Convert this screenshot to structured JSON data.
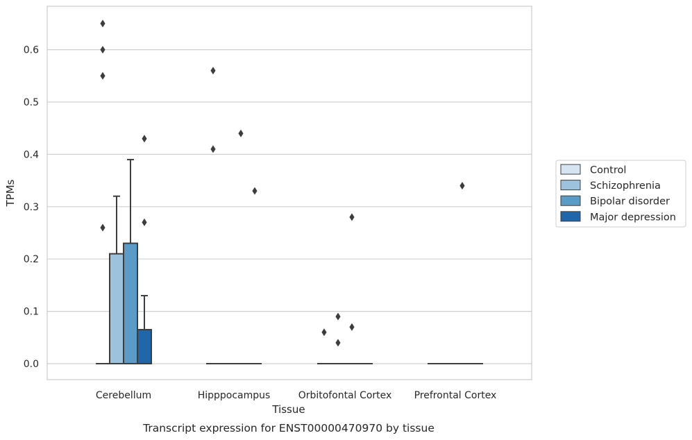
{
  "chart_data": {
    "type": "box",
    "caption": "Transcript expression for ENST00000470970 by tissue",
    "xlabel": "Tissue",
    "ylabel": "TPMs",
    "ylim": [
      -0.032,
      0.685
    ],
    "yticks": [
      0.0,
      0.1,
      0.2,
      0.3,
      0.4,
      0.5,
      0.6
    ],
    "ytick_labels": [
      "0.0",
      "0.1",
      "0.2",
      "0.3",
      "0.4",
      "0.5",
      "0.6"
    ],
    "grid": true,
    "legend_position": "right",
    "categories": [
      "Cerebellum",
      "Hipppocampus",
      "Orbitofontal Cortex",
      "Prefrontal Cortex"
    ],
    "series": [
      {
        "name": "Control",
        "color": "#d6e4f1",
        "boxes": [
          {
            "q1": 0,
            "median": 0,
            "q3": 0,
            "whisker_low": 0,
            "whisker_high": 0,
            "outliers": [
              0.26,
              0.55,
              0.6,
              0.65
            ]
          },
          {
            "q1": 0,
            "median": 0,
            "q3": 0,
            "whisker_low": 0,
            "whisker_high": 0,
            "outliers": [
              0.41,
              0.56
            ]
          },
          {
            "q1": 0,
            "median": 0,
            "q3": 0,
            "whisker_low": 0,
            "whisker_high": 0,
            "outliers": [
              0.06
            ]
          },
          {
            "q1": 0,
            "median": 0,
            "q3": 0,
            "whisker_low": 0,
            "whisker_high": 0,
            "outliers": []
          }
        ]
      },
      {
        "name": "Schizophrenia",
        "color": "#9cc2dd",
        "boxes": [
          {
            "q1": 0,
            "median": 0,
            "q3": 0.21,
            "whisker_low": 0,
            "whisker_high": 0.32,
            "outliers": []
          },
          {
            "q1": 0,
            "median": 0,
            "q3": 0,
            "whisker_low": 0,
            "whisker_high": 0,
            "outliers": []
          },
          {
            "q1": 0,
            "median": 0,
            "q3": 0,
            "whisker_low": 0,
            "whisker_high": 0,
            "outliers": [
              0.04,
              0.09
            ]
          },
          {
            "q1": 0,
            "median": 0,
            "q3": 0,
            "whisker_low": 0,
            "whisker_high": 0,
            "outliers": []
          }
        ]
      },
      {
        "name": "Bipolar disorder",
        "color": "#5a9bc8",
        "boxes": [
          {
            "q1": 0,
            "median": 0,
            "q3": 0.23,
            "whisker_low": 0,
            "whisker_high": 0.39,
            "outliers": []
          },
          {
            "q1": 0,
            "median": 0,
            "q3": 0,
            "whisker_low": 0,
            "whisker_high": 0,
            "outliers": [
              0.44
            ]
          },
          {
            "q1": 0,
            "median": 0,
            "q3": 0,
            "whisker_low": 0,
            "whisker_high": 0,
            "outliers": [
              0.07,
              0.28
            ]
          },
          {
            "q1": 0,
            "median": 0,
            "q3": 0,
            "whisker_low": 0,
            "whisker_high": 0,
            "outliers": [
              0.34
            ]
          }
        ]
      },
      {
        "name": "Major depression",
        "color": "#2166a8",
        "boxes": [
          {
            "q1": 0,
            "median": 0,
            "q3": 0.065,
            "whisker_low": 0,
            "whisker_high": 0.13,
            "outliers": [
              0.27,
              0.43
            ]
          },
          {
            "q1": 0,
            "median": 0,
            "q3": 0,
            "whisker_low": 0,
            "whisker_high": 0,
            "outliers": [
              0.33
            ]
          },
          {
            "q1": 0,
            "median": 0,
            "q3": 0,
            "whisker_low": 0,
            "whisker_high": 0,
            "outliers": []
          },
          {
            "q1": 0,
            "median": 0,
            "q3": 0,
            "whisker_low": 0,
            "whisker_high": 0,
            "outliers": []
          }
        ]
      }
    ]
  }
}
